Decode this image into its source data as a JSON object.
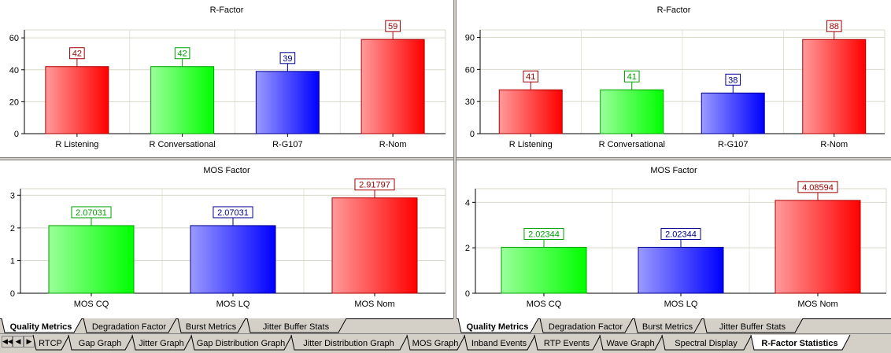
{
  "left": {
    "rfactor": {
      "title": "R-Factor",
      "categories": [
        "R Listening",
        "R Conversational",
        "R-G107",
        "R-Nom"
      ],
      "values": [
        42,
        42,
        39,
        59
      ],
      "labels": [
        "42",
        "42",
        "39",
        "59"
      ],
      "colors": [
        "red",
        "green",
        "blue",
        "red"
      ],
      "ylim": [
        0,
        65
      ],
      "ticks": [
        0,
        20,
        40,
        60
      ]
    },
    "mos": {
      "title": "MOS Factor",
      "categories": [
        "MOS CQ",
        "MOS LQ",
        "MOS Nom"
      ],
      "values": [
        2.07031,
        2.07031,
        2.91797
      ],
      "labels": [
        "2.07031",
        "2.07031",
        "2.91797"
      ],
      "colors": [
        "green",
        "blue",
        "red"
      ],
      "ylim": [
        0,
        3.2
      ],
      "ticks": [
        0,
        1,
        2,
        3
      ]
    },
    "subtabs": [
      "Quality Metrics",
      "Degradation Factor",
      "Burst Metrics",
      "Jitter Buffer Stats"
    ]
  },
  "right": {
    "rfactor": {
      "title": "R-Factor",
      "categories": [
        "R Listening",
        "R Conversational",
        "R-G107",
        "R-Nom"
      ],
      "values": [
        41,
        41,
        38,
        88
      ],
      "labels": [
        "41",
        "41",
        "38",
        "88"
      ],
      "colors": [
        "red",
        "green",
        "blue",
        "red"
      ],
      "ylim": [
        0,
        97
      ],
      "ticks": [
        0,
        30,
        60,
        90
      ]
    },
    "mos": {
      "title": "MOS Factor",
      "categories": [
        "MOS CQ",
        "MOS LQ",
        "MOS Nom"
      ],
      "values": [
        2.02344,
        2.02344,
        4.08594
      ],
      "labels": [
        "2.02344",
        "2.02344",
        "4.08594"
      ],
      "colors": [
        "green",
        "blue",
        "red"
      ],
      "ylim": [
        0,
        4.6
      ],
      "ticks": [
        0,
        2,
        4
      ]
    },
    "subtabs": [
      "Quality Metrics",
      "Degradation Factor",
      "Burst Metrics",
      "Jitter Buffer Stats"
    ]
  },
  "bottom_tabs": [
    "RTCP",
    "Gap Graph",
    "Jitter Graph",
    "Gap Distribution Graph",
    "Jitter Distribution Graph",
    "MOS Graph",
    "Inband Events",
    "RTP Events",
    "Wave Graph",
    "Spectral Display",
    "R-Factor Statistics"
  ],
  "active_bottom_tab": 10,
  "palette": {
    "red": [
      "#ff9a9a",
      "#ff0000",
      "#b00000"
    ],
    "green": [
      "#9aff9a",
      "#00ff00",
      "#00a000"
    ],
    "blue": [
      "#9a9aff",
      "#0000ff",
      "#000090"
    ]
  },
  "label_colors": {
    "red": "#a00000",
    "green": "#00a000",
    "blue": "#000090"
  },
  "chart_data": [
    {
      "type": "bar",
      "title": "R-Factor",
      "categories": [
        "R Listening",
        "R Conversational",
        "R-G107",
        "R-Nom"
      ],
      "values": [
        42,
        42,
        39,
        59
      ],
      "ylim": [
        0,
        65
      ]
    },
    {
      "type": "bar",
      "title": "MOS Factor",
      "categories": [
        "MOS CQ",
        "MOS LQ",
        "MOS Nom"
      ],
      "values": [
        2.07031,
        2.07031,
        2.91797
      ],
      "ylim": [
        0,
        3.2
      ]
    },
    {
      "type": "bar",
      "title": "R-Factor",
      "categories": [
        "R Listening",
        "R Conversational",
        "R-G107",
        "R-Nom"
      ],
      "values": [
        41,
        41,
        38,
        88
      ],
      "ylim": [
        0,
        97
      ]
    },
    {
      "type": "bar",
      "title": "MOS Factor",
      "categories": [
        "MOS CQ",
        "MOS LQ",
        "MOS Nom"
      ],
      "values": [
        2.02344,
        2.02344,
        4.08594
      ],
      "ylim": [
        0,
        4.6
      ]
    }
  ]
}
